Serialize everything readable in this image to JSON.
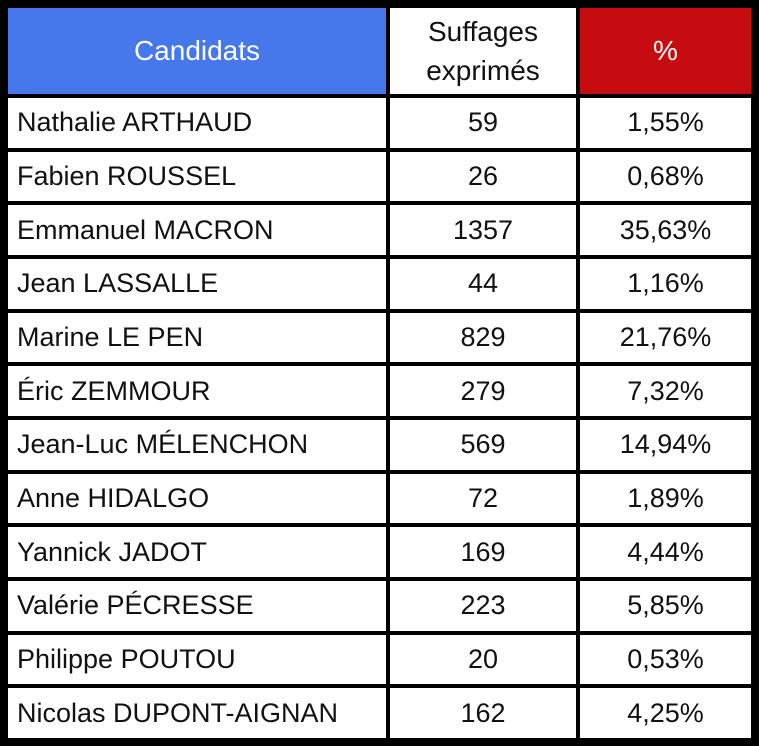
{
  "colors": {
    "header_blue": "#4678EC",
    "header_red": "#C60C10",
    "border_black": "#000000",
    "cell_white": "#FFFFFF",
    "header_text_white": "#FFFFFF",
    "text_black": "#111111"
  },
  "table": {
    "headers": [
      "Candidats",
      "Suffages exprimés",
      "%"
    ],
    "rows": [
      {
        "candidate": "Nathalie ARTHAUD",
        "votes": "59",
        "percent": "1,55%"
      },
      {
        "candidate": "Fabien ROUSSEL",
        "votes": "26",
        "percent": "0,68%"
      },
      {
        "candidate": "Emmanuel MACRON",
        "votes": "1357",
        "percent": "35,63%"
      },
      {
        "candidate": "Jean LASSALLE",
        "votes": "44",
        "percent": "1,16%"
      },
      {
        "candidate": "Marine LE PEN",
        "votes": "829",
        "percent": "21,76%"
      },
      {
        "candidate": "Éric ZEMMOUR",
        "votes": "279",
        "percent": "7,32%"
      },
      {
        "candidate": "Jean-Luc MÉLENCHON",
        "votes": "569",
        "percent": "14,94%"
      },
      {
        "candidate": "Anne HIDALGO",
        "votes": "72",
        "percent": "1,89%"
      },
      {
        "candidate": "Yannick JADOT",
        "votes": "169",
        "percent": "4,44%"
      },
      {
        "candidate": "Valérie PÉCRESSE",
        "votes": "223",
        "percent": "5,85%"
      },
      {
        "candidate": "Philippe POUTOU",
        "votes": "20",
        "percent": "0,53%"
      },
      {
        "candidate": "Nicolas DUPONT-AIGNAN",
        "votes": "162",
        "percent": "4,25%"
      }
    ]
  },
  "chart_data": {
    "type": "table",
    "title": "",
    "columns": [
      "Candidats",
      "Suffages exprimés",
      "%"
    ],
    "rows": [
      [
        "Nathalie ARTHAUD",
        59,
        "1,55%"
      ],
      [
        "Fabien ROUSSEL",
        26,
        "0,68%"
      ],
      [
        "Emmanuel MACRON",
        1357,
        "35,63%"
      ],
      [
        "Jean LASSALLE",
        44,
        "1,16%"
      ],
      [
        "Marine LE PEN",
        829,
        "21,76%"
      ],
      [
        "Éric ZEMMOUR",
        279,
        "7,32%"
      ],
      [
        "Jean-Luc MÉLENCHON",
        569,
        "14,94%"
      ],
      [
        "Anne HIDALGO",
        72,
        "1,89%"
      ],
      [
        "Yannick JADOT",
        169,
        "4,44%"
      ],
      [
        "Valérie PÉCRESSE",
        223,
        "5,85%"
      ],
      [
        "Philippe POUTOU",
        20,
        "0,53%"
      ],
      [
        "Nicolas DUPONT-AIGNAN",
        162,
        "4,25%"
      ]
    ]
  }
}
